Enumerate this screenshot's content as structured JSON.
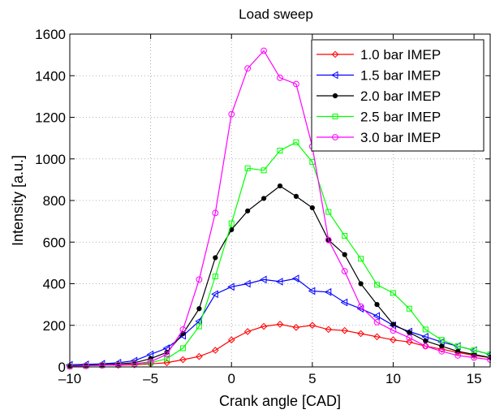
{
  "chart_data": {
    "type": "line",
    "title": "Load sweep",
    "xlabel": "Crank angle [CAD]",
    "ylabel": "Intensity [a.u.]",
    "xlim": [
      -10,
      16
    ],
    "ylim": [
      0,
      1600
    ],
    "xticks": [
      -10,
      -5,
      0,
      5,
      10,
      15
    ],
    "yticks": [
      0,
      200,
      400,
      600,
      800,
      1000,
      1200,
      1400,
      1600
    ],
    "grid": true,
    "legend_position": "top-right",
    "x": [
      -10,
      -9,
      -8,
      -7,
      -6,
      -5,
      -4,
      -3,
      -2,
      -1,
      0,
      1,
      2,
      3,
      4,
      5,
      6,
      7,
      8,
      9,
      10,
      11,
      12,
      13,
      14,
      15,
      16
    ],
    "series": [
      {
        "name": "1.0 bar IMEP",
        "color": "#ff0000",
        "marker": "diamond",
        "values": [
          5,
          5,
          8,
          8,
          10,
          15,
          20,
          35,
          50,
          80,
          130,
          170,
          195,
          205,
          190,
          200,
          180,
          175,
          160,
          145,
          130,
          120,
          100,
          85,
          70,
          55,
          45
        ]
      },
      {
        "name": "1.5 bar IMEP",
        "color": "#0000ff",
        "marker": "triangle-left",
        "values": [
          10,
          12,
          15,
          20,
          30,
          60,
          90,
          150,
          220,
          350,
          385,
          400,
          420,
          410,
          425,
          365,
          360,
          310,
          280,
          245,
          200,
          170,
          145,
          120,
          100,
          80,
          60
        ]
      },
      {
        "name": "2.0 bar IMEP",
        "color": "#000000",
        "marker": "dot",
        "values": [
          5,
          8,
          10,
          15,
          20,
          40,
          70,
          160,
          280,
          525,
          660,
          750,
          810,
          870,
          820,
          765,
          610,
          540,
          400,
          300,
          205,
          165,
          125,
          100,
          75,
          60,
          45
        ]
      },
      {
        "name": "2.5 bar IMEP",
        "color": "#00ff00",
        "marker": "square",
        "values": [
          3,
          5,
          8,
          10,
          15,
          20,
          40,
          90,
          195,
          435,
          690,
          955,
          945,
          1040,
          1080,
          985,
          745,
          630,
          520,
          395,
          355,
          280,
          180,
          130,
          100,
          80,
          60
        ]
      },
      {
        "name": "3.0 bar IMEP",
        "color": "#ff00ff",
        "marker": "circle",
        "values": [
          2,
          5,
          8,
          10,
          15,
          25,
          60,
          180,
          420,
          740,
          1215,
          1435,
          1520,
          1390,
          1360,
          1060,
          610,
          460,
          290,
          215,
          175,
          140,
          100,
          75,
          55,
          45,
          35
        ]
      }
    ]
  }
}
